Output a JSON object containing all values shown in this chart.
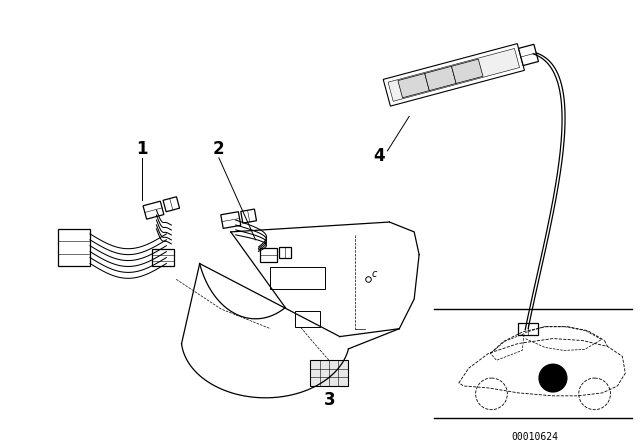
{
  "background_color": "#ffffff",
  "fig_width": 6.4,
  "fig_height": 4.48,
  "dpi": 100,
  "line_color": "#000000",
  "label_fontsize": 12,
  "part_code": "00010624"
}
